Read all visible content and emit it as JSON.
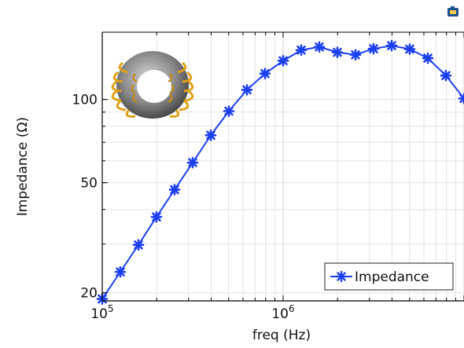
{
  "chart_data": {
    "type": "line",
    "xlabel": "freq (Hz)",
    "ylabel": "Impedance (Ω)",
    "x_scale": "log",
    "y_scale": "log",
    "xlim": [
      100000,
      10000000
    ],
    "ylim": [
      18.7,
      175
    ],
    "grid": true,
    "legend_position": "bottom-right",
    "x_ticks": [
      {
        "value": 100000,
        "base": "10",
        "exp": "5"
      },
      {
        "value": 1000000,
        "base": "10",
        "exp": "6"
      }
    ],
    "y_ticks": [
      {
        "value": 20,
        "label": "20"
      },
      {
        "value": 50,
        "label": "50"
      },
      {
        "value": 100,
        "label": "100"
      }
    ],
    "series": [
      {
        "name": "Impedance",
        "color": "#1c3ff0",
        "marker": "asterisk",
        "x": [
          100000,
          125900,
          158500,
          199500,
          251200,
          316200,
          398100,
          501200,
          631000,
          794300,
          1000000,
          1259000,
          1585000,
          1995000,
          2512000,
          3162000,
          3981000,
          5012000,
          6310000,
          7943000,
          10000000
        ],
        "y": [
          19.0,
          23.8,
          29.8,
          37.6,
          47.2,
          59.1,
          74.2,
          90.7,
          108.3,
          124.0,
          138.0,
          150.8,
          154.8,
          148.0,
          145.0,
          152.5,
          156.5,
          152.0,
          141.0,
          122.0,
          100.8
        ]
      }
    ]
  },
  "toolbar": {
    "icon": "camera-icon"
  }
}
